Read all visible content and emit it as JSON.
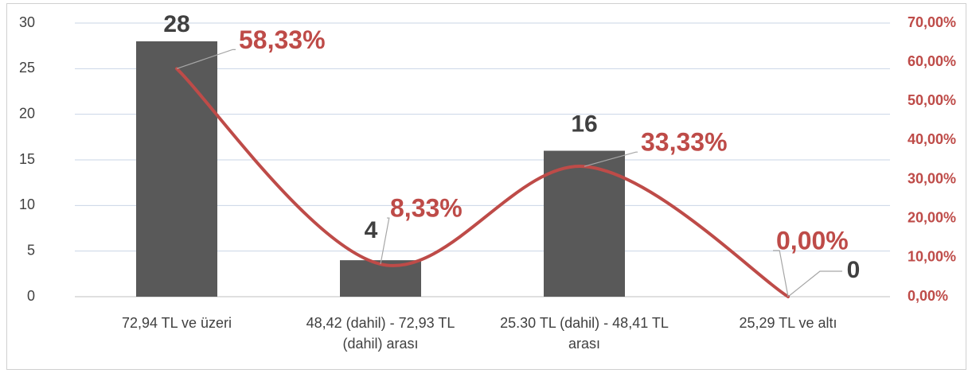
{
  "chart_data": {
    "type": "bar",
    "categories": [
      "72,94 TL ve üzeri",
      "48,42 (dahil) - 72,93 TL (dahil) arası",
      "25.30 TL (dahil) - 48,41 TL arası",
      "25,29 TL ve altı"
    ],
    "series": [
      {
        "type": "bar",
        "color": "#595959",
        "values": [
          28,
          4,
          16,
          0
        ]
      },
      {
        "type": "line",
        "axis": "y2",
        "color": "#be4b48",
        "values": [
          58.33,
          8.33,
          33.33,
          0
        ],
        "value_labels": [
          "58,33%",
          "8,33%",
          "33,33%",
          "0,00%"
        ],
        "smooth": true
      }
    ],
    "ylim": [
      0,
      30
    ],
    "yticks": [
      0,
      5,
      10,
      15,
      20,
      25,
      30
    ],
    "y2lim": [
      0,
      70
    ],
    "y2ticks": [
      {
        "value": 0,
        "label": "0,00%"
      },
      {
        "value": 10,
        "label": "10,00%"
      },
      {
        "value": 20,
        "label": "20,00%"
      },
      {
        "value": 30,
        "label": "30,00%"
      },
      {
        "value": 40,
        "label": "40,00%"
      },
      {
        "value": 50,
        "label": "50,00%"
      },
      {
        "value": 60,
        "label": "60,00%"
      },
      {
        "value": 70,
        "label": "70,00%"
      }
    ],
    "grid": true
  }
}
